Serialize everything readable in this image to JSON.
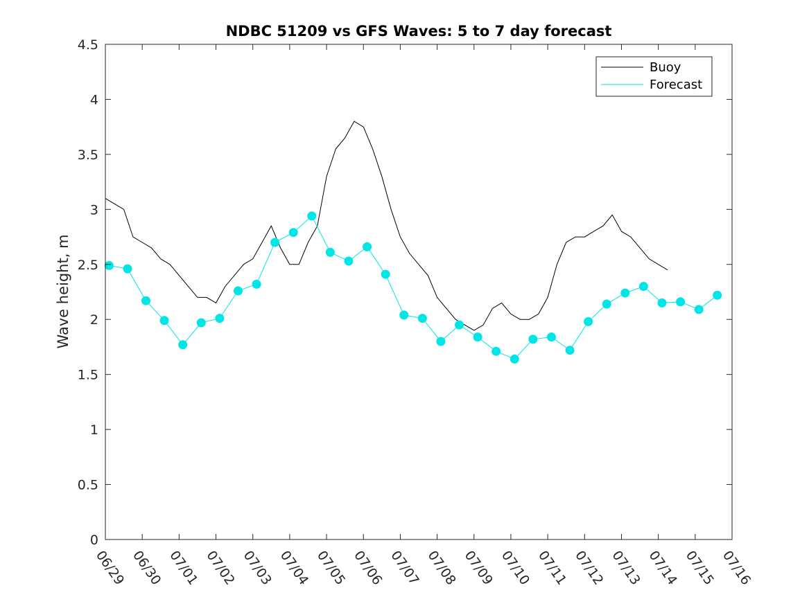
{
  "chart_data": {
    "type": "line",
    "title": "NDBC 51209 vs GFS Waves: 5 to 7 day forecast",
    "xlabel": "",
    "ylabel": "Wave height, m",
    "xlim": [
      0,
      17
    ],
    "ylim": [
      0,
      4.5
    ],
    "yticks": [
      0,
      0.5,
      1,
      1.5,
      2,
      2.5,
      3,
      3.5,
      4,
      4.5
    ],
    "ytick_labels": [
      "0",
      "0.5",
      "1",
      "1.5",
      "2",
      "2.5",
      "3",
      "3.5",
      "4",
      "4.5"
    ],
    "xtick_labels": [
      "06/29",
      "06/30",
      "07/01",
      "07/02",
      "07/03",
      "07/04",
      "07/05",
      "07/06",
      "07/07",
      "07/08",
      "07/09",
      "07/10",
      "07/11",
      "07/12",
      "07/13",
      "07/14",
      "07/15",
      "07/16"
    ],
    "grid": false,
    "legend_position": "top-right",
    "colors": {
      "buoy": "#000000",
      "forecast": "#00e5e5",
      "axis": "#262626"
    },
    "series": [
      {
        "name": "Buoy",
        "kind": "line",
        "x": [
          0.0,
          0.25,
          0.5,
          0.75,
          1.0,
          1.25,
          1.5,
          1.75,
          2.0,
          2.25,
          2.5,
          2.75,
          3.0,
          3.25,
          3.5,
          3.75,
          4.0,
          4.25,
          4.5,
          4.75,
          5.0,
          5.25,
          5.5,
          5.75,
          6.0,
          6.25,
          6.5,
          6.75,
          7.0,
          7.25,
          7.5,
          7.75,
          8.0,
          8.25,
          8.5,
          8.75,
          9.0,
          9.25,
          9.5,
          9.75,
          10.0,
          10.25,
          10.5,
          10.75,
          11.0,
          11.25,
          11.5,
          11.75,
          12.0,
          12.25,
          12.5,
          12.75,
          13.0,
          13.25,
          13.5,
          13.75,
          14.0,
          14.25,
          14.5,
          14.75,
          15.0,
          15.25
        ],
        "y": [
          3.1,
          3.05,
          3.0,
          2.75,
          2.7,
          2.65,
          2.55,
          2.5,
          2.4,
          2.3,
          2.2,
          2.2,
          2.15,
          2.3,
          2.4,
          2.5,
          2.55,
          2.7,
          2.85,
          2.65,
          2.5,
          2.5,
          2.7,
          2.85,
          3.3,
          3.55,
          3.65,
          3.8,
          3.75,
          3.55,
          3.3,
          3.0,
          2.75,
          2.6,
          2.5,
          2.4,
          2.2,
          2.1,
          2.0,
          1.95,
          1.9,
          1.95,
          2.1,
          2.15,
          2.05,
          2.0,
          2.0,
          2.05,
          2.2,
          2.5,
          2.7,
          2.75,
          2.75,
          2.8,
          2.85,
          2.95,
          2.8,
          2.75,
          2.65,
          2.55,
          2.5,
          2.45
        ]
      },
      {
        "name": "Forecast",
        "kind": "line",
        "x": [
          0.1,
          0.6,
          1.1,
          1.6,
          2.1,
          2.6,
          3.1,
          3.6,
          4.1,
          4.6,
          5.1,
          5.6,
          6.1,
          6.6,
          7.1,
          7.6,
          8.1,
          8.6,
          9.1,
          9.6,
          10.1,
          10.6,
          11.1,
          11.6,
          12.1,
          12.6,
          13.1,
          13.6,
          14.1,
          14.6,
          15.1,
          15.6,
          16.1,
          16.6
        ],
        "y": [
          2.49,
          2.46,
          2.17,
          1.99,
          1.77,
          1.97,
          2.01,
          2.26,
          2.32,
          2.7,
          2.79,
          2.94,
          2.61,
          2.53,
          2.66,
          2.41,
          2.04,
          2.01,
          1.8,
          1.95,
          1.84,
          1.71,
          1.64,
          1.82,
          1.84,
          1.72,
          1.98,
          2.14,
          2.24,
          2.3,
          2.15,
          2.16,
          2.09,
          2.22
        ]
      }
    ],
    "legend": [
      {
        "label": "Buoy",
        "color": "#000000"
      },
      {
        "label": "Forecast",
        "color": "#00e5e5"
      }
    ]
  }
}
